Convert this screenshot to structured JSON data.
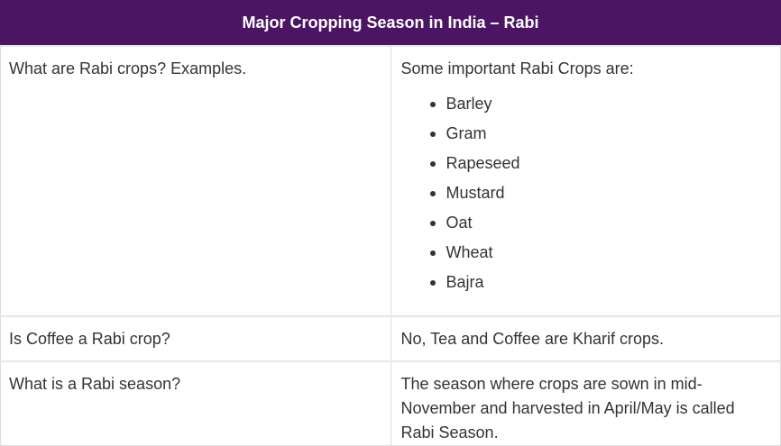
{
  "table": {
    "header": "Major Cropping Season in India – Rabi",
    "rows": [
      {
        "question": "What are Rabi crops? Examples.",
        "answer_intro": "Some important Rabi Crops are:",
        "crops": [
          "Barley",
          "Gram",
          "Rapeseed",
          "Mustard",
          "Oat",
          "Wheat",
          "Bajra"
        ]
      },
      {
        "question": "Is Coffee a Rabi crop?",
        "answer": "No, Tea and Coffee are Kharif crops."
      },
      {
        "question": "What is a Rabi season?",
        "answer": "The season where crops are sown in mid-November and harvested in April/May is called Rabi Season."
      }
    ]
  }
}
